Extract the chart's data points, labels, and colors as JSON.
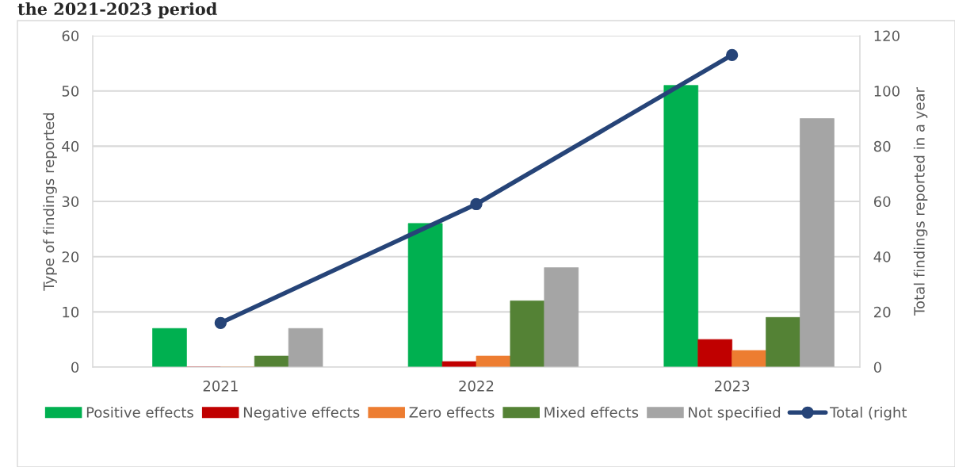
{
  "chart_data": {
    "type": "bar",
    "title": "the 2021-2023 period",
    "categories": [
      "2021",
      "2022",
      "2023"
    ],
    "series": [
      {
        "name": "Positive effects",
        "color": "#00b050",
        "values": [
          7,
          26,
          51
        ]
      },
      {
        "name": "Negative effects",
        "color": "#c00000",
        "values": [
          0,
          1,
          5
        ]
      },
      {
        "name": "Zero effects",
        "color": "#ed7d31",
        "values": [
          0,
          2,
          3
        ]
      },
      {
        "name": "Mixed effects",
        "color": "#548235",
        "values": [
          2,
          12,
          9
        ]
      },
      {
        "name": "Not specified",
        "color": "#a5a5a5",
        "values": [
          7,
          18,
          45
        ]
      },
      {
        "name": "Total (right",
        "color": "#264478",
        "type": "line",
        "axis": "y2",
        "marker": "circle",
        "values": [
          16,
          59,
          113
        ]
      }
    ],
    "ylabel": "Type of findings reported",
    "y2label": "Total findings reported in a year",
    "ylim": [
      0,
      60
    ],
    "yticks": [
      0,
      10,
      20,
      30,
      40,
      50,
      60
    ],
    "y2lim": [
      0,
      120
    ],
    "y2ticks": [
      0,
      20,
      40,
      60,
      80,
      100,
      120
    ],
    "grid": "y",
    "legend": "bottom"
  }
}
